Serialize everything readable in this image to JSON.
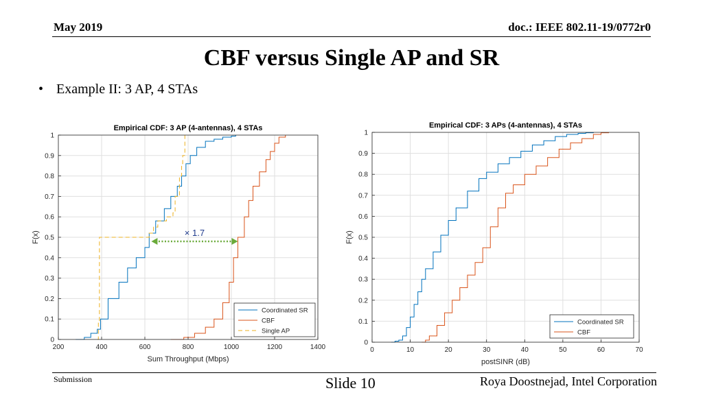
{
  "header": {
    "date": "May 2019",
    "doc": "doc.: IEEE 802.11-19/0772r0"
  },
  "slide": {
    "title": "CBF versus Single AP and SR",
    "bullet": "Example II: 3 AP, 4 STAs"
  },
  "footer": {
    "left": "Submission",
    "center": "Slide 10",
    "right": "Roya Doostnejad, Intel Corporation"
  },
  "colors": {
    "coordinated_sr": "#0072BD",
    "cbf": "#D95319",
    "single_ap": "#EDB120",
    "annotation": "#6AAA3A"
  },
  "chart_data": [
    {
      "type": "line",
      "title": "Empirical CDF: 3 AP (4-antennas), 4 STAs",
      "xlabel": "Sum Throughput (Mbps)",
      "ylabel": "F(x)",
      "xlim": [
        200,
        1400
      ],
      "ylim": [
        0,
        1
      ],
      "xticks": [
        200,
        400,
        600,
        800,
        1000,
        1200,
        1400
      ],
      "yticks": [
        0,
        0.1,
        0.2,
        0.3,
        0.4,
        0.5,
        0.6,
        0.7,
        0.8,
        0.9,
        1
      ],
      "grid": true,
      "legend_position": "bottom-right",
      "series": [
        {
          "name": "Coordinated SR",
          "style": "solid",
          "color": "#0072BD",
          "x": [
            280,
            320,
            350,
            380,
            395,
            430,
            480,
            520,
            560,
            600,
            620,
            650,
            690,
            720,
            750,
            770,
            790,
            810,
            840,
            880,
            920,
            960,
            1000,
            1020
          ],
          "y": [
            0,
            0.01,
            0.03,
            0.05,
            0.1,
            0.2,
            0.28,
            0.35,
            0.4,
            0.45,
            0.52,
            0.58,
            0.64,
            0.7,
            0.75,
            0.8,
            0.86,
            0.9,
            0.94,
            0.97,
            0.98,
            0.99,
            0.995,
            1
          ]
        },
        {
          "name": "CBF",
          "style": "solid",
          "color": "#D95319",
          "x": [
            720,
            780,
            830,
            880,
            920,
            960,
            990,
            1010,
            1030,
            1060,
            1080,
            1100,
            1130,
            1160,
            1180,
            1200,
            1220,
            1250
          ],
          "y": [
            0,
            0.01,
            0.03,
            0.06,
            0.1,
            0.18,
            0.28,
            0.4,
            0.5,
            0.6,
            0.68,
            0.75,
            0.82,
            0.88,
            0.92,
            0.96,
            0.99,
            1
          ]
        },
        {
          "name": "Single AP",
          "style": "dashed",
          "color": "#EDB120",
          "x": [
            380,
            385,
            390,
            600,
            620,
            640,
            660,
            700,
            730,
            740,
            760,
            770,
            775,
            785
          ],
          "y": [
            0,
            0.08,
            0.5,
            0.5,
            0.52,
            0.55,
            0.58,
            0.6,
            0.62,
            0.7,
            0.8,
            0.86,
            0.9,
            1
          ]
        }
      ],
      "annotation": {
        "text": "× 1.7",
        "from_x": 630,
        "to_x": 1030,
        "y": 0.48
      }
    },
    {
      "type": "line",
      "title": "Empirical CDF: 3 APs (4-antennas), 4 STAs",
      "xlabel": "postSINR (dB)",
      "ylabel": "F(x)",
      "xlim": [
        0,
        70
      ],
      "ylim": [
        0,
        1
      ],
      "xticks": [
        0,
        10,
        20,
        30,
        40,
        50,
        60,
        70
      ],
      "yticks": [
        0,
        0.1,
        0.2,
        0.3,
        0.4,
        0.5,
        0.6,
        0.7,
        0.8,
        0.9,
        1
      ],
      "grid": true,
      "legend_position": "bottom-right",
      "series": [
        {
          "name": "Coordinated SR",
          "style": "solid",
          "color": "#0072BD",
          "x": [
            5,
            6,
            7,
            8,
            9,
            10,
            11,
            12,
            13,
            14,
            16,
            18,
            20,
            22,
            25,
            28,
            30,
            33,
            36,
            39,
            42,
            45,
            48,
            51,
            54,
            56,
            58
          ],
          "y": [
            0,
            0.005,
            0.01,
            0.03,
            0.07,
            0.12,
            0.18,
            0.24,
            0.3,
            0.35,
            0.43,
            0.51,
            0.58,
            0.64,
            0.72,
            0.78,
            0.81,
            0.85,
            0.88,
            0.91,
            0.94,
            0.96,
            0.98,
            0.99,
            0.995,
            0.998,
            1
          ]
        },
        {
          "name": "CBF",
          "style": "solid",
          "color": "#D95319",
          "x": [
            13,
            14,
            15,
            17,
            19,
            21,
            23,
            25,
            27,
            29,
            31,
            33,
            35,
            37,
            40,
            43,
            46,
            49,
            52,
            55,
            58,
            60,
            62
          ],
          "y": [
            0,
            0.01,
            0.03,
            0.08,
            0.14,
            0.2,
            0.26,
            0.32,
            0.38,
            0.45,
            0.55,
            0.64,
            0.71,
            0.75,
            0.8,
            0.84,
            0.88,
            0.92,
            0.95,
            0.97,
            0.99,
            0.998,
            1
          ]
        }
      ]
    }
  ]
}
